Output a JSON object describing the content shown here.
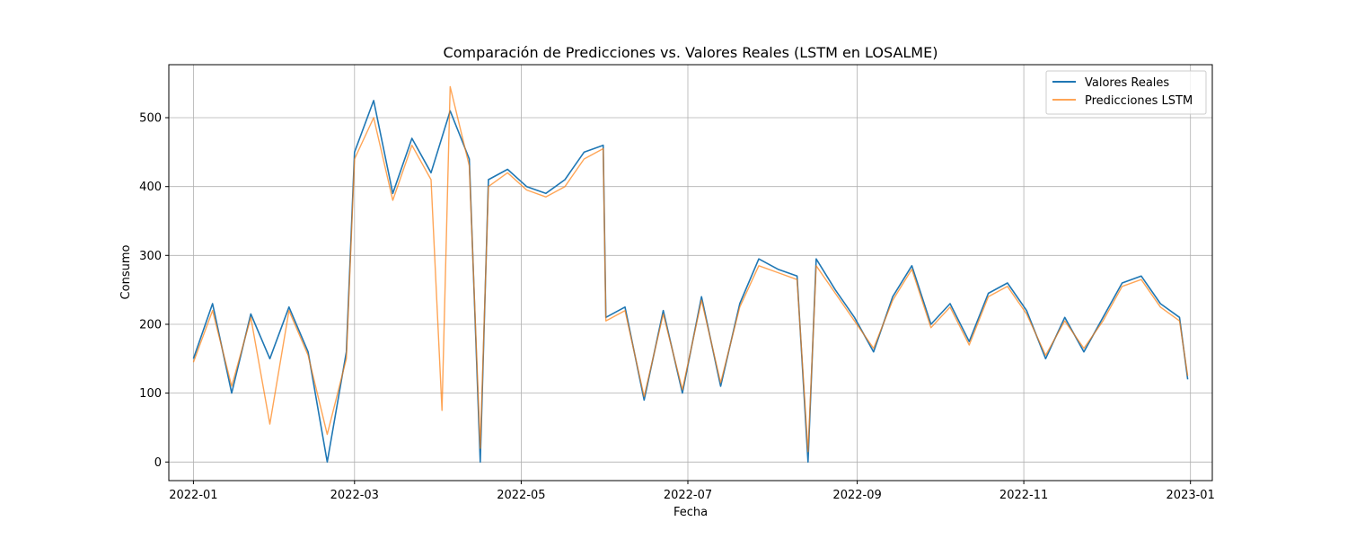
{
  "chart_data": {
    "type": "line",
    "title": "Comparación de Predicciones vs. Valores Reales (LSTM en LOSALME)",
    "xlabel": "Fecha",
    "ylabel": "Consumo",
    "xlim": [
      "2021-12-23",
      "2023-01-09"
    ],
    "ylim": [
      -27,
      577
    ],
    "grid": true,
    "legend_position": "top-right",
    "x_ticks": [
      "2022-01-01",
      "2022-03-01",
      "2022-05-01",
      "2022-07-01",
      "2022-09-01",
      "2022-11-01",
      "2023-01-01"
    ],
    "x_tick_labels": [
      "2022-01",
      "2022-03",
      "2022-05",
      "2022-07",
      "2022-09",
      "2022-11",
      "2023-01"
    ],
    "y_ticks": [
      0,
      100,
      200,
      300,
      400,
      500
    ],
    "y_tick_labels": [
      "0",
      "100",
      "200",
      "300",
      "400",
      "500"
    ],
    "series": [
      {
        "name": "Valores Reales",
        "color": "#1f77b4",
        "x": [
          "2022-01-01",
          "2022-01-08",
          "2022-01-15",
          "2022-01-22",
          "2022-01-29",
          "2022-02-05",
          "2022-02-12",
          "2022-02-19",
          "2022-02-26",
          "2022-03-01",
          "2022-03-08",
          "2022-03-15",
          "2022-03-22",
          "2022-03-29",
          "2022-04-05",
          "2022-04-12",
          "2022-04-16",
          "2022-04-19",
          "2022-04-26",
          "2022-05-03",
          "2022-05-10",
          "2022-05-17",
          "2022-05-24",
          "2022-05-31",
          "2022-06-01",
          "2022-06-08",
          "2022-06-15",
          "2022-06-22",
          "2022-06-29",
          "2022-07-06",
          "2022-07-13",
          "2022-07-20",
          "2022-07-27",
          "2022-08-03",
          "2022-08-10",
          "2022-08-14",
          "2022-08-17",
          "2022-08-24",
          "2022-08-31",
          "2022-09-07",
          "2022-09-14",
          "2022-09-21",
          "2022-09-28",
          "2022-10-05",
          "2022-10-12",
          "2022-10-19",
          "2022-10-26",
          "2022-11-02",
          "2022-11-09",
          "2022-11-16",
          "2022-11-23",
          "2022-11-30",
          "2022-12-07",
          "2022-12-14",
          "2022-12-21",
          "2022-12-28",
          "2022-12-31"
        ],
        "values": [
          150,
          230,
          100,
          215,
          150,
          225,
          160,
          0,
          160,
          450,
          525,
          390,
          470,
          420,
          510,
          440,
          0,
          410,
          425,
          400,
          390,
          410,
          450,
          460,
          210,
          225,
          90,
          220,
          100,
          240,
          110,
          230,
          295,
          280,
          270,
          0,
          295,
          250,
          210,
          160,
          240,
          285,
          200,
          230,
          175,
          245,
          260,
          220,
          150,
          210,
          160,
          210,
          260,
          270,
          230,
          210,
          120
        ]
      },
      {
        "name": "Predicciones LSTM",
        "color": "#ff7f0e",
        "x": [
          "2022-01-01",
          "2022-01-08",
          "2022-01-15",
          "2022-01-22",
          "2022-01-29",
          "2022-02-05",
          "2022-02-12",
          "2022-02-19",
          "2022-02-26",
          "2022-03-01",
          "2022-03-08",
          "2022-03-15",
          "2022-03-22",
          "2022-03-29",
          "2022-04-02",
          "2022-04-05",
          "2022-04-12",
          "2022-04-16",
          "2022-04-19",
          "2022-04-26",
          "2022-05-03",
          "2022-05-10",
          "2022-05-17",
          "2022-05-24",
          "2022-05-31",
          "2022-06-01",
          "2022-06-08",
          "2022-06-15",
          "2022-06-22",
          "2022-06-29",
          "2022-07-06",
          "2022-07-13",
          "2022-07-20",
          "2022-07-27",
          "2022-08-03",
          "2022-08-10",
          "2022-08-14",
          "2022-08-17",
          "2022-08-24",
          "2022-08-31",
          "2022-09-07",
          "2022-09-14",
          "2022-09-21",
          "2022-09-28",
          "2022-10-05",
          "2022-10-12",
          "2022-10-19",
          "2022-10-26",
          "2022-11-02",
          "2022-11-09",
          "2022-11-16",
          "2022-11-23",
          "2022-11-30",
          "2022-12-07",
          "2022-12-14",
          "2022-12-21",
          "2022-12-28",
          "2022-12-31"
        ],
        "values": [
          145,
          220,
          110,
          210,
          55,
          220,
          155,
          40,
          150,
          440,
          500,
          380,
          460,
          410,
          75,
          545,
          430,
          20,
          400,
          420,
          395,
          385,
          400,
          440,
          455,
          205,
          220,
          95,
          215,
          105,
          235,
          115,
          225,
          285,
          275,
          265,
          15,
          285,
          245,
          205,
          165,
          235,
          280,
          195,
          225,
          170,
          240,
          255,
          215,
          155,
          205,
          165,
          205,
          255,
          265,
          225,
          205,
          125
        ]
      }
    ]
  }
}
